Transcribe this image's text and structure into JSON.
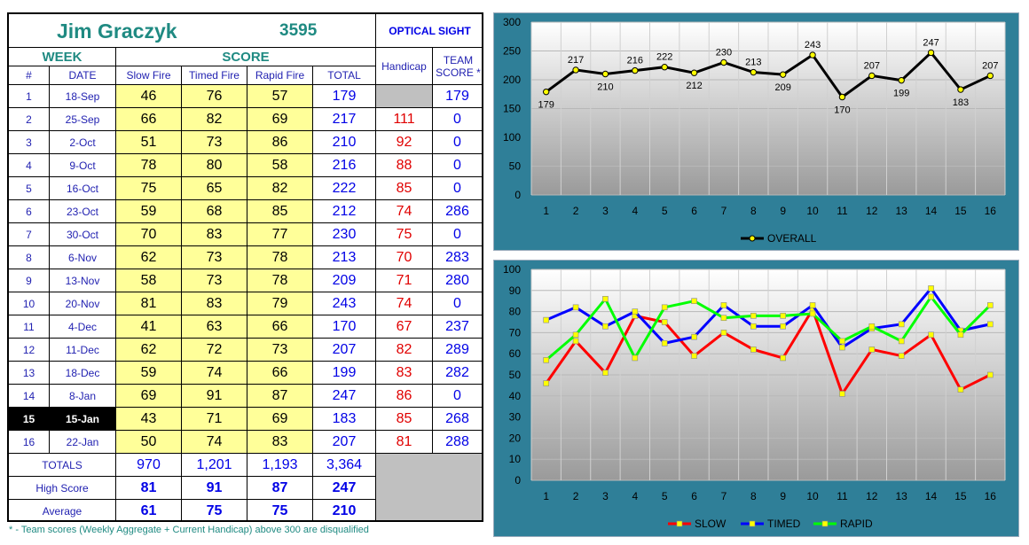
{
  "header": {
    "name": "Jim Graczyk",
    "number": "3595",
    "sight": "OPTICAL SIGHT"
  },
  "table": {
    "col_groups": {
      "week": "WEEK",
      "score": "SCORE"
    },
    "columns": {
      "num": "#",
      "date": "DATE",
      "slow": "Slow Fire",
      "timed": "Timed Fire",
      "rapid": "Rapid Fire",
      "total": "TOTAL",
      "handicap": "Handicap",
      "team_line1": "TEAM",
      "team_line2": "SCORE *"
    },
    "rows": [
      {
        "num": "1",
        "date": "18-Sep",
        "slow": "46",
        "timed": "76",
        "rapid": "57",
        "total": "179",
        "handicap": "",
        "team": "179"
      },
      {
        "num": "2",
        "date": "25-Sep",
        "slow": "66",
        "timed": "82",
        "rapid": "69",
        "total": "217",
        "handicap": "111",
        "team": "0"
      },
      {
        "num": "3",
        "date": "2-Oct",
        "slow": "51",
        "timed": "73",
        "rapid": "86",
        "total": "210",
        "handicap": "92",
        "team": "0"
      },
      {
        "num": "4",
        "date": "9-Oct",
        "slow": "78",
        "timed": "80",
        "rapid": "58",
        "total": "216",
        "handicap": "88",
        "team": "0"
      },
      {
        "num": "5",
        "date": "16-Oct",
        "slow": "75",
        "timed": "65",
        "rapid": "82",
        "total": "222",
        "handicap": "85",
        "team": "0"
      },
      {
        "num": "6",
        "date": "23-Oct",
        "slow": "59",
        "timed": "68",
        "rapid": "85",
        "total": "212",
        "handicap": "74",
        "team": "286"
      },
      {
        "num": "7",
        "date": "30-Oct",
        "slow": "70",
        "timed": "83",
        "rapid": "77",
        "total": "230",
        "handicap": "75",
        "team": "0"
      },
      {
        "num": "8",
        "date": "6-Nov",
        "slow": "62",
        "timed": "73",
        "rapid": "78",
        "total": "213",
        "handicap": "70",
        "team": "283"
      },
      {
        "num": "9",
        "date": "13-Nov",
        "slow": "58",
        "timed": "73",
        "rapid": "78",
        "total": "209",
        "handicap": "71",
        "team": "280"
      },
      {
        "num": "10",
        "date": "20-Nov",
        "slow": "81",
        "timed": "83",
        "rapid": "79",
        "total": "243",
        "handicap": "74",
        "team": "0"
      },
      {
        "num": "11",
        "date": "4-Dec",
        "slow": "41",
        "timed": "63",
        "rapid": "66",
        "total": "170",
        "handicap": "67",
        "team": "237"
      },
      {
        "num": "12",
        "date": "11-Dec",
        "slow": "62",
        "timed": "72",
        "rapid": "73",
        "total": "207",
        "handicap": "82",
        "team": "289"
      },
      {
        "num": "13",
        "date": "18-Dec",
        "slow": "59",
        "timed": "74",
        "rapid": "66",
        "total": "199",
        "handicap": "83",
        "team": "282"
      },
      {
        "num": "14",
        "date": "8-Jan",
        "slow": "69",
        "timed": "91",
        "rapid": "87",
        "total": "247",
        "handicap": "86",
        "team": "0"
      },
      {
        "num": "15",
        "date": "15-Jan",
        "slow": "43",
        "timed": "71",
        "rapid": "69",
        "total": "183",
        "handicap": "85",
        "team": "268"
      },
      {
        "num": "16",
        "date": "22-Jan",
        "slow": "50",
        "timed": "74",
        "rapid": "83",
        "total": "207",
        "handicap": "81",
        "team": "288"
      }
    ],
    "current_week": "15",
    "totals": {
      "label": "TOTALS",
      "slow": "970",
      "timed": "1,201",
      "rapid": "1,193",
      "total": "3,364"
    },
    "high": {
      "label": "High Score",
      "slow": "81",
      "timed": "91",
      "rapid": "87",
      "total": "247"
    },
    "average": {
      "label": "Average",
      "slow": "61",
      "timed": "75",
      "rapid": "75",
      "total": "210"
    }
  },
  "footnote": "* - Team scores (Weekly Aggregate + Current Handicap) above 300 are disqualified",
  "colors": {
    "panel": "#2f7f98",
    "overall": "#000000",
    "slow": "#ff0000",
    "timed": "#0000ff",
    "rapid": "#00ff00",
    "marker": "#ffff00",
    "yellow_cell": "#ffff99"
  },
  "chart_data": [
    {
      "type": "line",
      "x": [
        1,
        2,
        3,
        4,
        5,
        6,
        7,
        8,
        9,
        10,
        11,
        12,
        13,
        14,
        15,
        16
      ],
      "series": [
        {
          "name": "OVERALL",
          "values": [
            179,
            217,
            210,
            216,
            222,
            212,
            230,
            213,
            209,
            243,
            170,
            207,
            199,
            247,
            183,
            207
          ]
        }
      ],
      "ylim": [
        0,
        300
      ],
      "yticks": [
        0,
        50,
        100,
        150,
        200,
        250,
        300
      ],
      "data_labels": true,
      "legend": "bottom",
      "grid": true
    },
    {
      "type": "line",
      "x": [
        1,
        2,
        3,
        4,
        5,
        6,
        7,
        8,
        9,
        10,
        11,
        12,
        13,
        14,
        15,
        16
      ],
      "series": [
        {
          "name": "SLOW",
          "values": [
            46,
            66,
            51,
            78,
            75,
            59,
            70,
            62,
            58,
            81,
            41,
            62,
            59,
            69,
            43,
            50
          ]
        },
        {
          "name": "TIMED",
          "values": [
            76,
            82,
            73,
            80,
            65,
            68,
            83,
            73,
            73,
            83,
            63,
            72,
            74,
            91,
            71,
            74
          ]
        },
        {
          "name": "RAPID",
          "values": [
            57,
            69,
            86,
            58,
            82,
            85,
            77,
            78,
            78,
            79,
            66,
            73,
            66,
            87,
            69,
            83
          ]
        }
      ],
      "ylim": [
        0,
        100
      ],
      "yticks": [
        0,
        10,
        20,
        30,
        40,
        50,
        60,
        70,
        80,
        90,
        100
      ],
      "legend": "bottom",
      "grid": true
    }
  ]
}
